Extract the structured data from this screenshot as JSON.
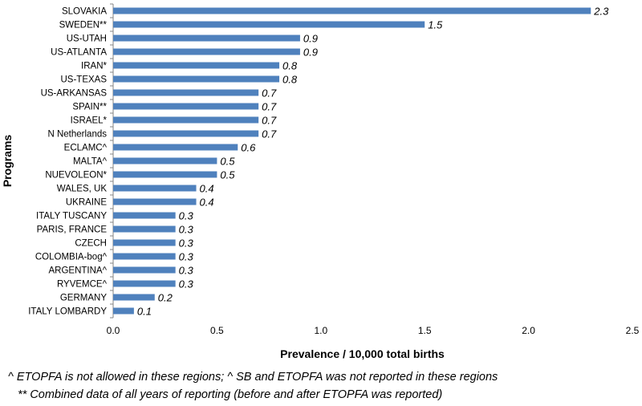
{
  "chart_data": {
    "type": "bar",
    "orientation": "horizontal",
    "categories": [
      "SLOVAKIA",
      "SWEDEN**",
      "US-UTAH",
      "US-ATLANTA",
      "IRAN*",
      "US-TEXAS",
      "US-ARKANSAS",
      "SPAIN**",
      "ISRAEL*",
      "N Netherlands",
      "ECLAMC^",
      "MALTA^",
      "NUEVOLEON*",
      "WALES, UK",
      "UKRAINE",
      "ITALY TUSCANY",
      "PARIS, FRANCE",
      "CZECH",
      "COLOMBIA-bog^",
      "ARGENTINA^",
      "RYVEMCE^",
      "GERMANY",
      "ITALY LOMBARDY"
    ],
    "values": [
      2.3,
      1.5,
      0.9,
      0.9,
      0.8,
      0.8,
      0.7,
      0.7,
      0.7,
      0.7,
      0.6,
      0.5,
      0.5,
      0.4,
      0.4,
      0.3,
      0.3,
      0.3,
      0.3,
      0.3,
      0.3,
      0.2,
      0.1
    ],
    "value_labels": [
      "2.3",
      "1.5",
      "0.9",
      "0.9",
      "0.8",
      "0.8",
      "0.7",
      "0.7",
      "0.7",
      "0.7",
      "0.6",
      "0.5",
      "0.5",
      "0.4",
      "0.4",
      "0.3",
      "0.3",
      "0.3",
      "0.3",
      "0.3",
      "0.3",
      "0.2",
      "0.1"
    ],
    "xlabel": "Prevalence / 10,000 total births",
    "ylabel": "Programs",
    "xlim": [
      0,
      2.5
    ],
    "xticks": [
      0,
      0.5,
      1,
      1.5,
      2,
      2.5
    ],
    "xtick_labels": [
      "0.0",
      "0.5",
      "1.0",
      "1.5",
      "2.0",
      "2.5"
    ],
    "bar_color": "#4f81bd",
    "grid": false,
    "legend": "none"
  },
  "footnotes": [
    "^ ETOPFA is not allowed in these regions; ^ SB and ETOPFA was not reported in these regions",
    "** Combined data of all years of reporting (before and after ETOPFA was reported)"
  ]
}
